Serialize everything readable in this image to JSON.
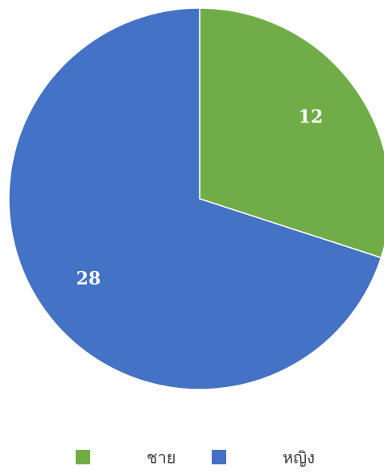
{
  "chart_data": {
    "type": "pie",
    "categories": [
      "ชาย",
      "หญิง"
    ],
    "values": [
      12,
      28
    ],
    "colors": [
      "#70ad47",
      "#4472c4"
    ],
    "legend": "bottom"
  }
}
